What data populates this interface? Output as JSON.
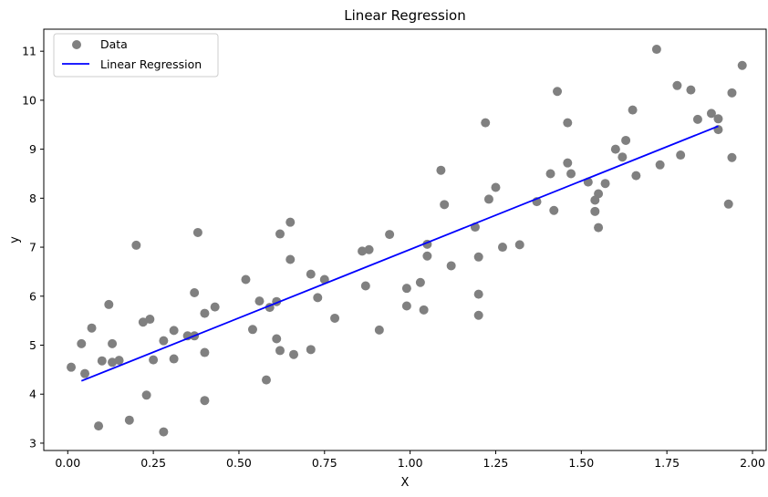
{
  "chart_data": {
    "type": "scatter",
    "title": "Linear Regression",
    "xlabel": "X",
    "ylabel": "y",
    "xlim": [
      -0.07,
      2.04
    ],
    "ylim": [
      2.85,
      11.45
    ],
    "xticks": [
      0.0,
      0.25,
      0.5,
      0.75,
      1.0,
      1.25,
      1.5,
      1.75,
      2.0
    ],
    "xtick_labels": [
      "0.00",
      "0.25",
      "0.50",
      "0.75",
      "1.00",
      "1.25",
      "1.50",
      "1.75",
      "2.00"
    ],
    "yticks": [
      3,
      4,
      5,
      6,
      7,
      8,
      9,
      10,
      11
    ],
    "ytick_labels": [
      "3",
      "4",
      "5",
      "6",
      "7",
      "8",
      "9",
      "10",
      "11"
    ],
    "grid": false,
    "legend_position": "top-left",
    "series": [
      {
        "name": "Data",
        "kind": "scatter",
        "color": "#808080",
        "points": [
          [
            0.01,
            4.55
          ],
          [
            0.04,
            5.03
          ],
          [
            0.05,
            4.42
          ],
          [
            0.07,
            5.35
          ],
          [
            0.09,
            3.35
          ],
          [
            0.1,
            4.68
          ],
          [
            0.12,
            5.83
          ],
          [
            0.13,
            5.03
          ],
          [
            0.13,
            4.65
          ],
          [
            0.15,
            4.69
          ],
          [
            0.18,
            3.47
          ],
          [
            0.2,
            7.04
          ],
          [
            0.22,
            5.47
          ],
          [
            0.23,
            3.98
          ],
          [
            0.24,
            5.53
          ],
          [
            0.25,
            4.7
          ],
          [
            0.28,
            5.09
          ],
          [
            0.28,
            3.23
          ],
          [
            0.31,
            5.3
          ],
          [
            0.31,
            4.72
          ],
          [
            0.35,
            5.19
          ],
          [
            0.37,
            5.19
          ],
          [
            0.37,
            6.07
          ],
          [
            0.38,
            7.3
          ],
          [
            0.4,
            5.65
          ],
          [
            0.4,
            4.85
          ],
          [
            0.4,
            3.87
          ],
          [
            0.43,
            5.78
          ],
          [
            0.52,
            6.34
          ],
          [
            0.54,
            5.32
          ],
          [
            0.56,
            5.9
          ],
          [
            0.58,
            4.29
          ],
          [
            0.59,
            5.77
          ],
          [
            0.61,
            5.89
          ],
          [
            0.61,
            5.13
          ],
          [
            0.62,
            7.27
          ],
          [
            0.62,
            4.89
          ],
          [
            0.65,
            6.75
          ],
          [
            0.65,
            7.51
          ],
          [
            0.66,
            4.81
          ],
          [
            0.71,
            6.45
          ],
          [
            0.71,
            4.91
          ],
          [
            0.73,
            5.97
          ],
          [
            0.75,
            6.34
          ],
          [
            0.78,
            5.55
          ],
          [
            0.86,
            6.92
          ],
          [
            0.87,
            6.21
          ],
          [
            0.88,
            6.95
          ],
          [
            0.91,
            5.31
          ],
          [
            0.94,
            7.26
          ],
          [
            0.99,
            6.16
          ],
          [
            0.99,
            5.8
          ],
          [
            1.03,
            6.28
          ],
          [
            1.04,
            5.72
          ],
          [
            1.05,
            7.06
          ],
          [
            1.05,
            6.82
          ],
          [
            1.09,
            8.57
          ],
          [
            1.1,
            7.87
          ],
          [
            1.12,
            6.62
          ],
          [
            1.19,
            7.41
          ],
          [
            1.2,
            6.04
          ],
          [
            1.2,
            5.61
          ],
          [
            1.2,
            6.8
          ],
          [
            1.22,
            9.54
          ],
          [
            1.23,
            7.98
          ],
          [
            1.25,
            8.22
          ],
          [
            1.27,
            7.0
          ],
          [
            1.32,
            7.05
          ],
          [
            1.37,
            7.93
          ],
          [
            1.41,
            8.5
          ],
          [
            1.42,
            7.75
          ],
          [
            1.43,
            10.18
          ],
          [
            1.46,
            9.54
          ],
          [
            1.46,
            8.72
          ],
          [
            1.47,
            8.5
          ],
          [
            1.52,
            8.33
          ],
          [
            1.54,
            7.96
          ],
          [
            1.54,
            7.73
          ],
          [
            1.55,
            7.4
          ],
          [
            1.55,
            8.09
          ],
          [
            1.57,
            8.3
          ],
          [
            1.6,
            9.0
          ],
          [
            1.62,
            8.84
          ],
          [
            1.63,
            9.18
          ],
          [
            1.65,
            9.8
          ],
          [
            1.66,
            8.46
          ],
          [
            1.72,
            11.04
          ],
          [
            1.73,
            8.68
          ],
          [
            1.78,
            10.3
          ],
          [
            1.79,
            8.88
          ],
          [
            1.82,
            10.21
          ],
          [
            1.84,
            9.61
          ],
          [
            1.88,
            9.73
          ],
          [
            1.9,
            9.62
          ],
          [
            1.9,
            9.4
          ],
          [
            1.93,
            7.88
          ],
          [
            1.94,
            8.83
          ],
          [
            1.94,
            10.15
          ],
          [
            1.97,
            10.71
          ]
        ]
      },
      {
        "name": "Linear Regression",
        "kind": "line",
        "color": "#0000ff",
        "points": [
          [
            0.04,
            4.27
          ],
          [
            1.9,
            9.47
          ]
        ]
      }
    ]
  }
}
